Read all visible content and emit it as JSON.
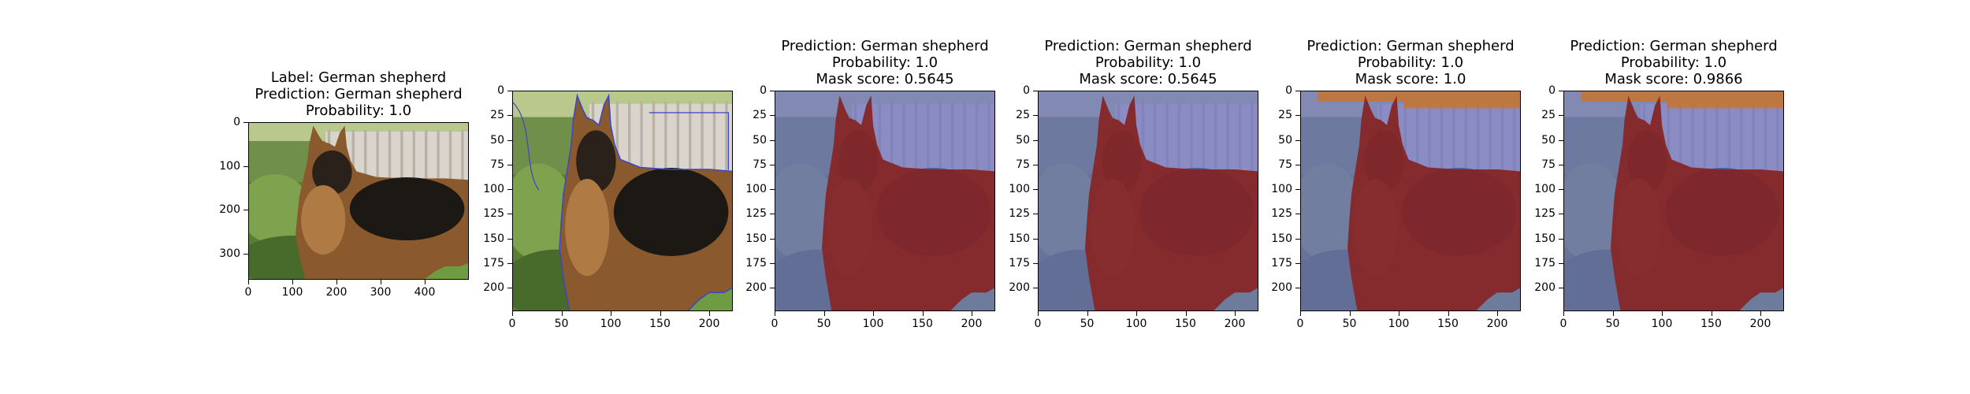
{
  "panels": [
    {
      "id": "original",
      "title_lines": [
        "Label: German shepherd",
        "Prediction: German shepherd",
        "Probability: 1.0"
      ],
      "image_content": "photo-dog",
      "overlay": "none",
      "x_ticks": [
        "0",
        "100",
        "200",
        "300",
        "400"
      ],
      "y_ticks": [
        "0",
        "100",
        "200",
        "300"
      ]
    },
    {
      "id": "segmentation",
      "title_lines": [],
      "image_content": "photo-dog-segments",
      "overlay": "boundaries",
      "x_ticks": [
        "0",
        "50",
        "100",
        "150",
        "200"
      ],
      "y_ticks": [
        "0",
        "25",
        "50",
        "75",
        "100",
        "125",
        "150",
        "175",
        "200"
      ]
    },
    {
      "id": "mask-1",
      "title_lines": [
        "Prediction: German shepherd",
        "Probability: 1.0",
        "Mask score: 0.5645"
      ],
      "image_content": "photo-dog-mask",
      "overlay": "dog-red-bg-blue",
      "x_ticks": [
        "0",
        "50",
        "100",
        "150",
        "200"
      ],
      "y_ticks": [
        "0",
        "25",
        "50",
        "75",
        "100",
        "125",
        "150",
        "175",
        "200"
      ]
    },
    {
      "id": "mask-2",
      "title_lines": [
        "Prediction: German shepherd",
        "Probability: 1.0",
        "Mask score: 0.5645"
      ],
      "image_content": "photo-dog-mask",
      "overlay": "dog-red-bg-blue",
      "x_ticks": [
        "0",
        "50",
        "100",
        "150",
        "200"
      ],
      "y_ticks": [
        "0",
        "25",
        "50",
        "75",
        "100",
        "125",
        "150",
        "175",
        "200"
      ]
    },
    {
      "id": "mask-3",
      "title_lines": [
        "Prediction: German shepherd",
        "Probability: 1.0",
        "Mask score: 1.0"
      ],
      "image_content": "photo-dog-mask",
      "overlay": "dog-red-bg-blue-top-orange",
      "x_ticks": [
        "0",
        "50",
        "100",
        "150",
        "200"
      ],
      "y_ticks": [
        "0",
        "25",
        "50",
        "75",
        "100",
        "125",
        "150",
        "175",
        "200"
      ]
    },
    {
      "id": "mask-4",
      "title_lines": [
        "Prediction: German shepherd",
        "Probability: 1.0",
        "Mask score: 0.9866"
      ],
      "image_content": "photo-dog-mask",
      "overlay": "dog-red-bg-blue-top-orange",
      "x_ticks": [
        "0",
        "50",
        "100",
        "150",
        "200"
      ],
      "y_ticks": [
        "0",
        "25",
        "50",
        "75",
        "100",
        "125",
        "150",
        "175",
        "200"
      ]
    }
  ],
  "colors": {
    "mask_dog": "#8b1a0f",
    "mask_background": "#6c70c0",
    "mask_top": "#c8742e",
    "segment_line": "#3a46c8"
  }
}
